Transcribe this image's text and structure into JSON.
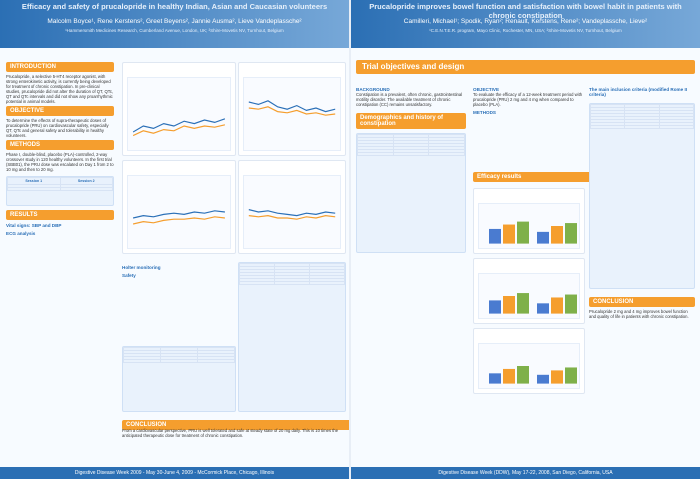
{
  "left_poster": {
    "header_title": "Efficacy and safety of prucalopride in healthy Indian, Asian and Caucasian volunteers",
    "authors": "Malcolm Boyce¹, Rene Kerstens², Greet Beyens², Jannie Ausma², Lieve Vandeplassche²",
    "affiliations": "¹Hammersmith Medicines Research, Cumberland Avenue, London, UK; ²Shire-Movetis NV, Turnhout, Belgium",
    "sections": {
      "introduction": "INTRODUCTION",
      "objective": "OBJECTIVE",
      "methods": "METHODS",
      "results": "RESULTS",
      "conclusion": "CONCLUSION"
    },
    "intro_text": "Prucalopride, a selective 5-HT4 receptor agonist, with strong enterokinetic activity, is currently being developed for treatment of chronic constipation. In pre-clinical studies, prucalopride did not alter the duration of QT, QTc, QT and QTc intervals and did not show any proarrhythmic potential in animal models.",
    "objective_text": "To determine the effects of supra-therapeutic doses of prucalopride (PRU) on cardiovascular safety, especially QT, QTc and general safety and tolerability in healthy volunteers.",
    "methods_text": "Phase I, double-blind, placebo (PLA)-controlled, 2-way crossover study in 120 healthy volunteers. In the first trial (SBB01), the PRU dose was escalated on Day 1 from 2 to 10 mg and then to 20 mg.",
    "results_subtitle": "Vital signs: SBP and DBP",
    "ecg_subtitle": "ECG analysis",
    "holter_subtitle": "Holter monitoring",
    "safety_subtitle": "Safety",
    "conclusion_text": "From a cardiovascular perspective, PRU is well tolerated and safe at steady state of 20 mg daily. This is 10 times the anticipated therapeutic dose for treatment of chronic constipation.",
    "footer": "Digestive Disease Week 2009 - May 30-June 4, 2009 - McCormick Place, Chicago, Illinois"
  },
  "right_poster": {
    "header_title": "Prucalopride improves bowel function and satisfaction with bowel habit in patients with chronic constipation",
    "authors": "Camilleri, Michael¹; Spodik, Ryan²; Renault, Kerstens, Rene²; Vandeplassche, Lieve²",
    "affiliations": "¹C.E.N.T.E.R. program, Mayo Clinic, Rochester, MN, USA; ²Shire-Movetis NV, Turnhout, Belgium",
    "title_bar": "Trial objectives and design",
    "sections": {
      "background": "BACKGROUND",
      "objective": "OBJECTIVE",
      "methods": "METHODS",
      "demographics": "Demographics and history of constipation",
      "efficacy_results": "Efficacy results",
      "conclusion": "CONCLUSION"
    },
    "background_text": "Constipation is a prevalent, often chronic, gastrointestinal motility disorder. The available treatment of chronic constipation (CC) remains unsatisfactory.",
    "objective_text": "To evaluate the efficacy of a 12-week treatment period with prucalopride (PRU) 2 mg and 4 mg when compared to placebo (PLA).",
    "key_points": "The main inclusion criteria (modified Rome II criteria)",
    "conclusion_text": "Prucalopride 2 mg and 4 mg improves bowel function and quality of life in patients with chronic constipation.",
    "footer": "Digestive Disease Week (DDW), May 17-22, 2008, San Diego, California, USA"
  }
}
